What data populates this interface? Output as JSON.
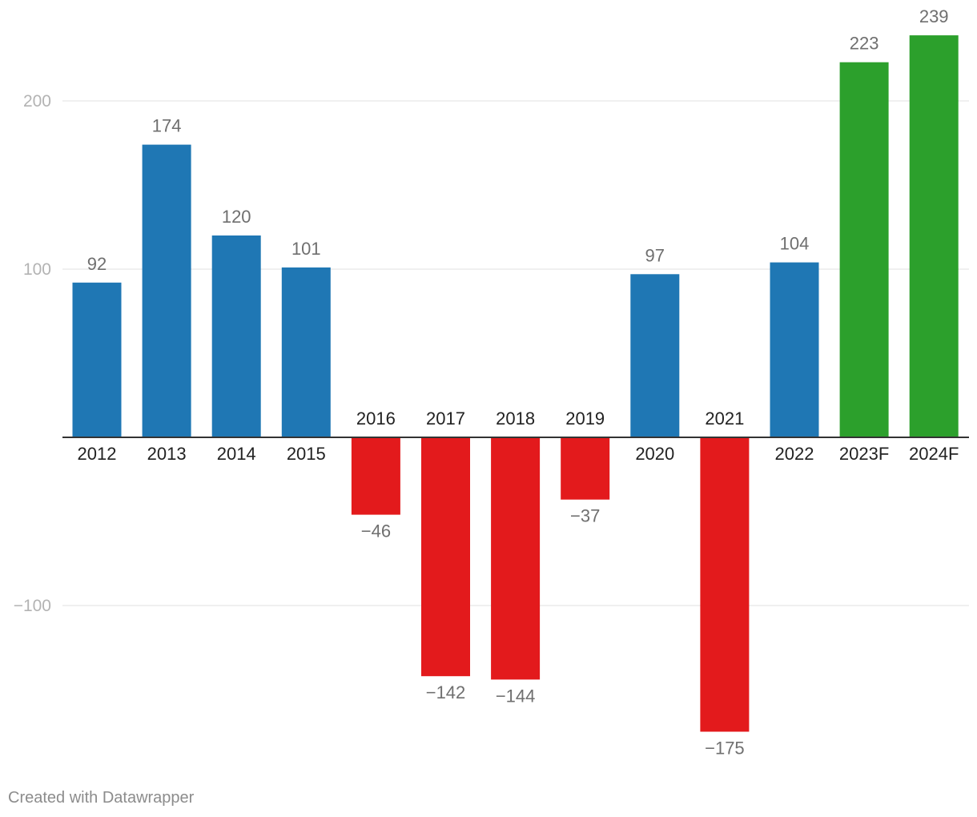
{
  "chart_data": {
    "type": "bar",
    "categories": [
      "2012",
      "2013",
      "2014",
      "2015",
      "2016",
      "2017",
      "2018",
      "2019",
      "2020",
      "2021",
      "2022",
      "2023F",
      "2024F"
    ],
    "values": [
      92,
      174,
      120,
      101,
      -46,
      -142,
      -144,
      -37,
      97,
      -175,
      104,
      223,
      239
    ],
    "value_labels": [
      "92",
      "174",
      "120",
      "101",
      "−46",
      "−142",
      "−144",
      "−37",
      "97",
      "−175",
      "104",
      "223",
      "239"
    ],
    "bar_groups": [
      "positive",
      "positive",
      "positive",
      "positive",
      "negative",
      "negative",
      "negative",
      "negative",
      "positive",
      "negative",
      "positive",
      "forecast",
      "forecast"
    ],
    "colors": {
      "positive": "#1f77b4",
      "negative": "#e31a1c",
      "forecast": "#2ca02c"
    },
    "yticks": [
      200,
      100,
      -100
    ],
    "ytick_labels": [
      "200",
      "100",
      "−100"
    ],
    "ylim": [
      -190,
      250
    ],
    "grid": true,
    "title": "",
    "xlabel": "",
    "ylabel": ""
  },
  "footer": {
    "credit": "Created with Datawrapper"
  }
}
